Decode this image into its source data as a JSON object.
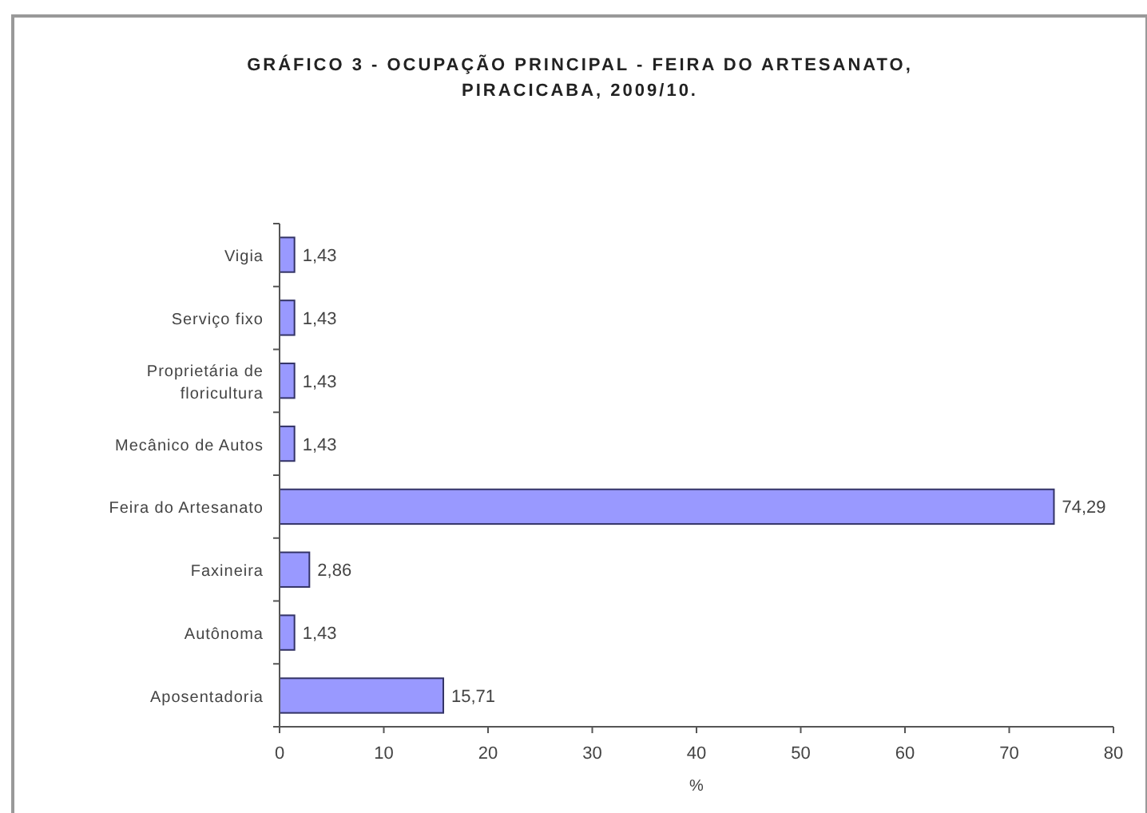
{
  "chart_data": {
    "type": "bar",
    "orientation": "horizontal",
    "title": "GRÁFICO 3 - OCUPAÇÃO PRINCIPAL - FEIRA DO ARTESANATO, PIRACICABA, 2009/10.",
    "xlabel": "%",
    "categories": [
      "Vigia",
      "Serviço fixo",
      "Proprietária de floricultura",
      "Mecânico de Autos",
      "Feira do Artesanato",
      "Faxineira",
      "Autônoma",
      "Aposentadoria"
    ],
    "values": [
      1.43,
      1.43,
      1.43,
      1.43,
      74.29,
      2.86,
      1.43,
      15.71
    ],
    "value_labels": [
      "1,43",
      "1,43",
      "1,43",
      "1,43",
      "74,29",
      "2,86",
      "1,43",
      "15,71"
    ],
    "color": "#9999ff",
    "xlim": [
      0,
      80
    ],
    "xticks": [
      0,
      10,
      20,
      30,
      40,
      50,
      60,
      70,
      80
    ],
    "grid": false
  }
}
